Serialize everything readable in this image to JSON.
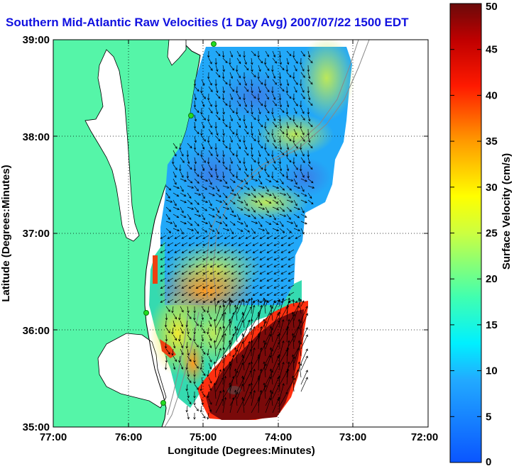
{
  "title": "Southern Mid-Atlantic Raw Velocities (1 Day Avg) 2007/07/22 1500 EDT",
  "map": {
    "xlabel": "Longitude (Degrees:Minutes)",
    "ylabel": "Latitude (Degrees:Minutes)",
    "x_ticks": [
      "77:00",
      "76:00",
      "75:00",
      "74:00",
      "73:00",
      "72:00"
    ],
    "y_ticks": [
      "39:00",
      "38:00",
      "37:00",
      "36:00",
      "35:00"
    ],
    "lon_range": [
      -77,
      -72
    ],
    "lat_range": [
      35,
      39
    ],
    "land_color": "#55f5a8",
    "water_color": "#ffffff",
    "vector_color": "#000000",
    "grid_style": "dotted",
    "station_color": "#22dd22"
  },
  "colorbar": {
    "label": "Surface Velocity (cm/s)",
    "ticks": [
      "50",
      "45",
      "40",
      "35",
      "30",
      "25",
      "20",
      "15",
      "10",
      "5",
      "0"
    ],
    "min": 0,
    "max": 50,
    "colormap": "jet"
  }
}
